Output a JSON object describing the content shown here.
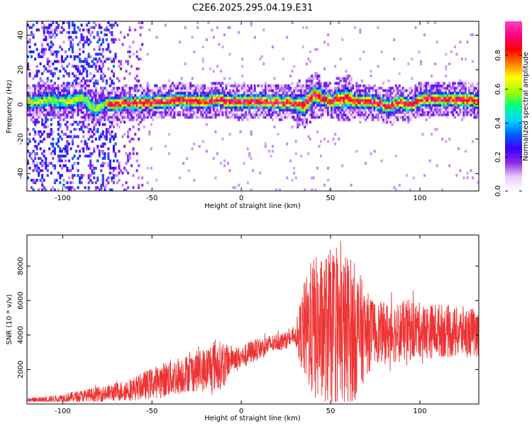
{
  "title": "C2E6.2025.295.04.19.E31",
  "chart_data": [
    {
      "type": "heatmap",
      "name": "spectrogram",
      "xlabel": "Height of straight line (km)",
      "ylabel": "Frequency (Hz)",
      "xlim": [
        -120,
        133
      ],
      "ylim": [
        -50,
        48
      ],
      "xticks": [
        -100,
        -50,
        0,
        50,
        100
      ],
      "yticks": [
        -40,
        -20,
        0,
        20,
        40
      ],
      "xtick_labels": [
        "-100",
        "-50",
        "0",
        "50",
        "100"
      ],
      "ytick_labels": [
        "-40",
        "-20",
        "0",
        "20",
        "40"
      ],
      "ridge_center_hz": [
        [
          -118,
          0
        ],
        [
          -110,
          2
        ],
        [
          -100,
          1
        ],
        [
          -90,
          3
        ],
        [
          -82,
          -3
        ],
        [
          -75,
          0
        ],
        [
          -60,
          0
        ],
        [
          -45,
          1
        ],
        [
          -35,
          2
        ],
        [
          -25,
          1
        ],
        [
          -15,
          2
        ],
        [
          0,
          1
        ],
        [
          10,
          1
        ],
        [
          20,
          1
        ],
        [
          28,
          0
        ],
        [
          35,
          -1
        ],
        [
          40,
          5
        ],
        [
          50,
          1
        ],
        [
          58,
          3
        ],
        [
          65,
          1
        ],
        [
          75,
          1
        ],
        [
          82,
          -2
        ],
        [
          88,
          1
        ],
        [
          95,
          -1
        ],
        [
          102,
          3
        ],
        [
          110,
          2
        ],
        [
          120,
          2
        ],
        [
          133,
          2
        ]
      ],
      "colorbar": {
        "label": "Normalized spectral amplitude",
        "range": [
          0.0,
          1.0
        ],
        "ticks": [
          0.0,
          0.2,
          0.4,
          0.6,
          0.8
        ],
        "tick_labels": [
          "0.0",
          "0.2",
          "0.4",
          "0.6",
          "0.8"
        ],
        "colors": [
          "#ffffff",
          "#e8ccff",
          "#8a2be2",
          "#3a00ff",
          "#0060ff",
          "#00d8ff",
          "#00ff80",
          "#a0ff00",
          "#ffff00",
          "#ff8000",
          "#ff0000",
          "#ff0080",
          "#ff40c0"
        ]
      }
    },
    {
      "type": "line",
      "name": "snr",
      "xlabel": "Height of straight line (km)",
      "ylabel": "SNR (10 * v/v)",
      "xlim": [
        -120,
        133
      ],
      "ylim": [
        0,
        9800
      ],
      "xticks": [
        -100,
        -50,
        0,
        50,
        100
      ],
      "yticks": [
        2000,
        4000,
        6000,
        8000
      ],
      "xtick_labels": [
        "-100",
        "-50",
        "0",
        "50",
        "100"
      ],
      "ytick_labels": [
        "2000",
        "4000",
        "6000",
        "8000"
      ],
      "color": "#ee3333",
      "series": [
        {
          "name": "SNR",
          "x": [
            -120,
            -110,
            -100,
            -90,
            -80,
            -70,
            -60,
            -50,
            -40,
            -30,
            -20,
            -15,
            -10,
            -5,
            0,
            5,
            10,
            15,
            20,
            25,
            30,
            35,
            40,
            45,
            50,
            55,
            60,
            65,
            70,
            75,
            80,
            85,
            90,
            95,
            100,
            105,
            110,
            115,
            120,
            125,
            133
          ],
          "mean": [
            200,
            250,
            350,
            450,
            550,
            700,
            900,
            1200,
            1500,
            1800,
            2000,
            2300,
            2200,
            2700,
            2700,
            3000,
            3200,
            3400,
            3600,
            3700,
            4000,
            4200,
            4400,
            4200,
            4400,
            4300,
            4200,
            4200,
            4100,
            4200,
            4100,
            4200,
            4200,
            4300,
            4300,
            4200,
            4300,
            4200,
            4100,
            4200,
            4100
          ],
          "amplitude": [
            150,
            180,
            250,
            350,
            450,
            550,
            700,
            900,
            1100,
            1100,
            1300,
            1600,
            1300,
            700,
            600,
            700,
            600,
            600,
            500,
            500,
            400,
            2800,
            4200,
            4400,
            4600,
            4600,
            4600,
            3800,
            2500,
            1800,
            1800,
            1800,
            1800,
            1800,
            1600,
            1600,
            1600,
            1500,
            1500,
            1500,
            1400
          ]
        }
      ]
    }
  ]
}
